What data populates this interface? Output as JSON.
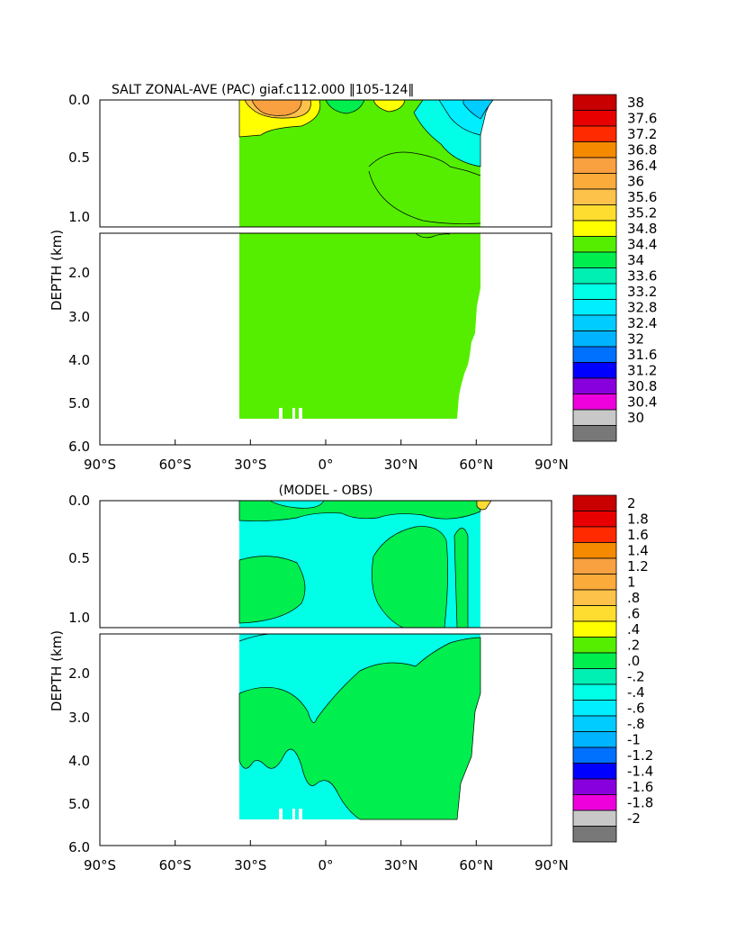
{
  "figure": {
    "top_title": "SALT ZONAL-AVE (PAC) giaf.c112.000 ‖105-124‖",
    "bottom_title": "(MODEL - OBS)"
  },
  "chart_data": [
    {
      "type": "heatmap",
      "title": "SALT ZONAL-AVE (PAC) giaf.c112.000 ‖105-124‖",
      "ylabel": "DEPTH (km)",
      "xlabel": "",
      "xlim": [
        -90,
        90
      ],
      "x_ticks": [
        "90°S",
        "60°S",
        "30°S",
        "0°",
        "30°N",
        "60°N",
        "90°N"
      ],
      "y_ticks_upper": [
        "0.0",
        "0.5",
        "1.0"
      ],
      "y_ticks_lower": [
        "2.0",
        "3.0",
        "4.0",
        "5.0",
        "6.0"
      ],
      "colorbar_labels": [
        "38",
        "37.6",
        "37.2",
        "36.8",
        "36.4",
        "36",
        "35.6",
        "35.2",
        "34.8",
        "34.4",
        "34",
        "33.6",
        "33.2",
        "32.8",
        "32.4",
        "32",
        "31.6",
        "31.2",
        "30.8",
        "30.4",
        "30"
      ],
      "colorbar_colors": [
        "#c80000",
        "#e80000",
        "#ff2a00",
        "#f58a00",
        "#f9a040",
        "#fbab3a",
        "#fdc24a",
        "#ffdd30",
        "#ffff00",
        "#55ee00",
        "#00ee4e",
        "#00f0b4",
        "#00ffe6",
        "#00eeff",
        "#00ccff",
        "#00b4ff",
        "#0070ff",
        "#0000ff",
        "#8800dd",
        "#ee00dd",
        "#c8c8c8",
        "#787878"
      ],
      "data_extent_lat": [
        -34,
        62
      ],
      "dominant_value_range": [
        34.4,
        34.8
      ],
      "regions": [
        {
          "range": [
            35.6,
            36.4
          ],
          "lat": [
            -30,
            -20
          ],
          "depth_km": [
            0.0,
            0.15
          ]
        },
        {
          "range": [
            35.2,
            35.6
          ],
          "lat": [
            -34,
            -10
          ],
          "depth_km": [
            0.0,
            0.3
          ]
        },
        {
          "range": [
            34.0,
            34.4
          ],
          "lat": [
            -5,
            5
          ],
          "depth_km": [
            0.0,
            0.1
          ]
        },
        {
          "range": [
            32.4,
            33.6
          ],
          "lat": [
            35,
            65
          ],
          "depth_km": [
            0.0,
            0.4
          ]
        }
      ]
    },
    {
      "type": "heatmap",
      "title": "(MODEL - OBS)",
      "ylabel": "DEPTH (km)",
      "xlabel": "",
      "xlim": [
        -90,
        90
      ],
      "x_ticks": [
        "90°S",
        "60°S",
        "30°S",
        "0°",
        "30°N",
        "60°N",
        "90°N"
      ],
      "y_ticks_upper": [
        "0.0",
        "0.5",
        "1.0"
      ],
      "y_ticks_lower": [
        "2.0",
        "3.0",
        "4.0",
        "5.0",
        "6.0"
      ],
      "colorbar_labels": [
        "2",
        "1.8",
        "1.6",
        "1.4",
        "1.2",
        "1",
        ".8",
        ".6",
        ".4",
        ".2",
        ".0",
        "-.2",
        "-.4",
        "-.6",
        "-.8",
        "-1",
        "-1.2",
        "-1.4",
        "-1.6",
        "-1.8",
        "-2"
      ],
      "colorbar_colors": [
        "#c80000",
        "#e80000",
        "#ff2a00",
        "#f58a00",
        "#f9a040",
        "#fbab3a",
        "#fdc24a",
        "#ffdd30",
        "#ffff00",
        "#55ee00",
        "#00ee4e",
        "#00f0b4",
        "#00ffe6",
        "#00eeff",
        "#00ccff",
        "#00b4ff",
        "#0070ff",
        "#0000ff",
        "#8800dd",
        "#ee00dd",
        "#c8c8c8",
        "#787878"
      ],
      "data_extent_lat": [
        -34,
        62
      ],
      "dominant_value_range": [
        -0.2,
        0.0
      ],
      "regions": [
        {
          "range": [
            0.0,
            0.2
          ],
          "lat": [
            -34,
            -18
          ],
          "depth_km": [
            0.4,
            1.0
          ]
        },
        {
          "range": [
            0.0,
            0.2
          ],
          "lat": [
            10,
            35
          ],
          "depth_km": [
            0.4,
            1.0
          ]
        },
        {
          "range": [
            0.0,
            0.2
          ],
          "lat": [
            -34,
            55
          ],
          "depth_km": [
            2.5,
            5.4
          ]
        }
      ]
    }
  ]
}
